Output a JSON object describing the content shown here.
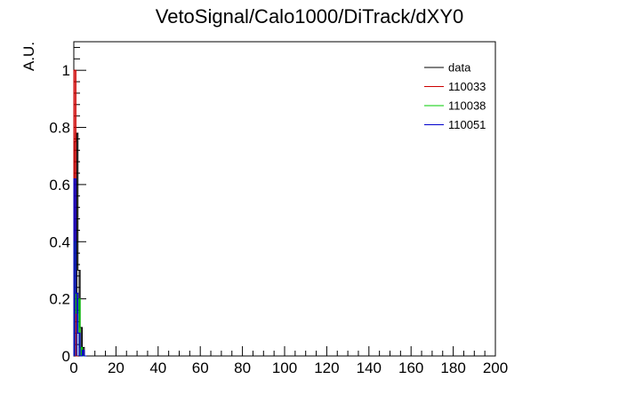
{
  "chart_data": {
    "type": "histogram",
    "title": "VetoSignal/Calo1000/DiTrack/dXY0",
    "xlabel": "",
    "ylabel": "A.U.",
    "xlim": [
      0,
      200
    ],
    "ylim": [
      0,
      1.1
    ],
    "x_ticks": [
      0,
      20,
      40,
      60,
      80,
      100,
      120,
      140,
      160,
      180,
      200
    ],
    "y_ticks": [
      0,
      0.2,
      0.4,
      0.6,
      0.8,
      1
    ],
    "legend_position": "top-right",
    "series": [
      {
        "name": "data",
        "color": "#000000",
        "bins": [
          [
            0,
            1,
            0.75
          ],
          [
            1,
            2,
            0.78
          ],
          [
            2,
            3,
            0.3
          ],
          [
            3,
            4,
            0.1
          ],
          [
            4,
            5,
            0.03
          ]
        ]
      },
      {
        "name": "110033",
        "color": "#cc0000",
        "bins": [
          [
            0,
            1,
            1.0
          ],
          [
            1,
            2,
            0.0
          ]
        ]
      },
      {
        "name": "110038",
        "color": "#00cc00",
        "bins": [
          [
            0,
            1,
            0.4
          ],
          [
            1,
            2,
            0.15
          ],
          [
            2,
            3,
            0.2
          ],
          [
            3,
            4,
            0.03
          ],
          [
            4,
            5,
            0.0
          ]
        ]
      },
      {
        "name": "110051",
        "color": "#0000cc",
        "bins": [
          [
            0,
            1,
            0.62
          ],
          [
            1,
            2,
            0.22
          ],
          [
            2,
            3,
            0.08
          ],
          [
            3,
            4,
            0.0
          ],
          [
            4,
            5,
            0.02
          ],
          [
            5,
            6,
            0.0
          ]
        ]
      }
    ]
  }
}
